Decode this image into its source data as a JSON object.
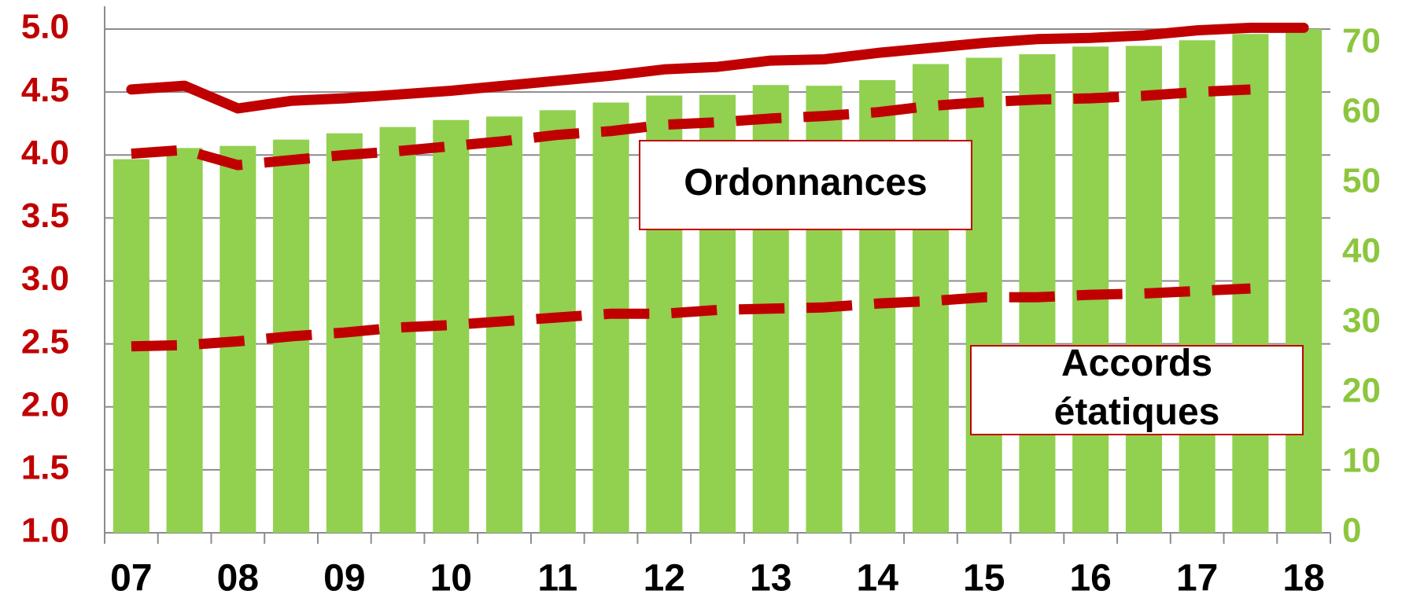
{
  "chart_data": {
    "type": "bar",
    "categories": [
      "07",
      null,
      "08",
      null,
      "09",
      null,
      "10",
      null,
      "11",
      null,
      "12",
      null,
      "13",
      null,
      "14",
      null,
      "15",
      null,
      "16",
      null,
      "17",
      null,
      "18"
    ],
    "series": [
      {
        "type": "bar",
        "axis": "y2",
        "color": "#92d050",
        "values": [
          53.4,
          55.0,
          55.3,
          56.2,
          57.1,
          58.0,
          59.0,
          59.5,
          60.4,
          61.5,
          62.5,
          62.6,
          64.0,
          63.9,
          64.7,
          67.0,
          67.9,
          68.4,
          69.5,
          69.6,
          70.4,
          71.3,
          72.0
        ]
      },
      {
        "type": "line",
        "axis": "y",
        "color": "#c00000",
        "dash": false,
        "values": [
          4.52,
          4.55,
          4.37,
          4.43,
          4.45,
          4.48,
          4.51,
          4.55,
          4.59,
          4.63,
          4.68,
          4.7,
          4.75,
          4.76,
          4.81,
          4.85,
          4.89,
          4.92,
          4.93,
          4.95,
          4.99,
          5.01,
          5.01
        ]
      },
      {
        "type": "line",
        "axis": "y",
        "color": "#c00000",
        "dash": true,
        "values": [
          4.01,
          4.04,
          3.92,
          3.96,
          4.0,
          4.03,
          4.07,
          4.11,
          4.16,
          4.19,
          4.24,
          4.26,
          4.29,
          4.31,
          4.34,
          4.39,
          4.42,
          4.44,
          4.45,
          4.47,
          4.5,
          4.52,
          null
        ]
      },
      {
        "type": "line",
        "axis": "y",
        "color": "#c00000",
        "dash": true,
        "values": [
          2.48,
          2.49,
          2.52,
          2.56,
          2.59,
          2.63,
          2.65,
          2.68,
          2.71,
          2.74,
          2.74,
          2.77,
          2.78,
          2.79,
          2.82,
          2.84,
          2.87,
          2.87,
          2.89,
          2.9,
          2.92,
          2.94,
          null
        ]
      }
    ],
    "ylim": [
      1,
      5
    ],
    "yticks": [
      {
        "value": 1,
        "label": "1.0"
      },
      {
        "value": 1.5,
        "label": "1.5"
      },
      {
        "value": 2,
        "label": "2.0"
      },
      {
        "value": 2.5,
        "label": "2.5"
      },
      {
        "value": 3,
        "label": "3.0"
      },
      {
        "value": 3.5,
        "label": "3.5"
      },
      {
        "value": 4,
        "label": "4.0"
      },
      {
        "value": 4.5,
        "label": "4.5"
      },
      {
        "value": 5,
        "label": "5.0"
      }
    ],
    "y2lim": [
      0,
      72
    ],
    "y2ticks": [
      0,
      10,
      20,
      30,
      40,
      50,
      60,
      70
    ],
    "grid": true,
    "annotations": [
      {
        "lines": [
          "Ordonnances"
        ]
      },
      {
        "lines": [
          "Accords",
          "étatiques"
        ]
      }
    ]
  }
}
